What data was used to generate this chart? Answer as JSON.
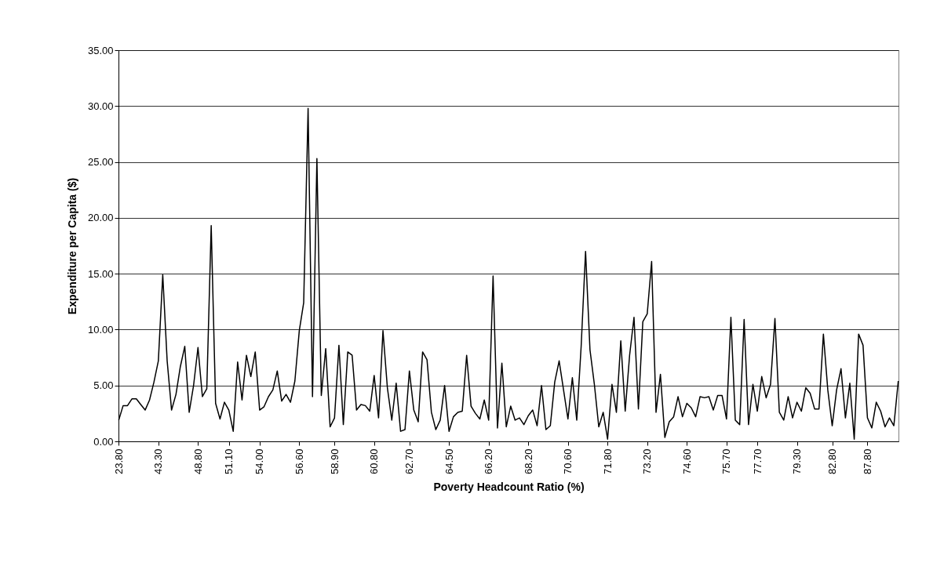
{
  "chart_data": {
    "type": "line",
    "xlabel": "Poverty Headcount Ratio (%)",
    "ylabel": "Expenditure per Capita ($)",
    "categories": [
      "23.80",
      null,
      null,
      null,
      null,
      null,
      null,
      null,
      null,
      "43.30",
      null,
      null,
      null,
      null,
      null,
      null,
      null,
      null,
      "48.80",
      null,
      null,
      null,
      null,
      null,
      null,
      "51.10",
      null,
      null,
      null,
      null,
      null,
      null,
      "54.00",
      null,
      null,
      null,
      null,
      null,
      null,
      null,
      null,
      "56.60",
      null,
      null,
      null,
      null,
      null,
      null,
      null,
      "58.90",
      null,
      null,
      null,
      null,
      null,
      null,
      null,
      null,
      "60.80",
      null,
      null,
      null,
      null,
      null,
      null,
      null,
      "62.70",
      null,
      null,
      null,
      null,
      null,
      null,
      null,
      null,
      "64.50",
      null,
      null,
      null,
      null,
      null,
      null,
      null,
      null,
      "66.20",
      null,
      null,
      null,
      null,
      null,
      null,
      null,
      null,
      "68.20",
      null,
      null,
      null,
      null,
      null,
      null,
      null,
      null,
      "70.60",
      null,
      null,
      null,
      null,
      null,
      null,
      null,
      null,
      "71.80",
      null,
      null,
      null,
      null,
      null,
      null,
      null,
      null,
      "73.20",
      null,
      null,
      null,
      null,
      null,
      null,
      null,
      null,
      "74.60",
      null,
      null,
      null,
      null,
      null,
      null,
      null,
      null,
      "75.70",
      null,
      null,
      null,
      null,
      null,
      null,
      "77.70",
      null,
      null,
      null,
      null,
      null,
      null,
      null,
      null,
      "79.30",
      null,
      null,
      null,
      null,
      null,
      null,
      null,
      "82.80",
      null,
      null,
      null,
      null,
      null,
      null,
      null,
      "87.80",
      null,
      null,
      null,
      null,
      null,
      null,
      null
    ],
    "series": [
      {
        "color": "#000000",
        "values": [
          1.9,
          3.2,
          3.2,
          3.8,
          3.8,
          3.3,
          2.8,
          3.7,
          5.3,
          7.2,
          14.9,
          7.2,
          2.8,
          4.2,
          6.7,
          8.5,
          2.6,
          5.0,
          8.4,
          4.0,
          4.7,
          19.3,
          3.4,
          2.0,
          3.5,
          2.8,
          0.9,
          7.1,
          3.7,
          7.7,
          5.8,
          8.0,
          2.8,
          3.1,
          4.0,
          4.6,
          6.3,
          3.6,
          4.2,
          3.5,
          5.4,
          9.9,
          12.4,
          29.8,
          4.0,
          25.3,
          4.1,
          8.3,
          1.3,
          2.1,
          8.6,
          1.5,
          8.0,
          7.7,
          2.8,
          3.3,
          3.2,
          2.7,
          5.9,
          2.1,
          9.9,
          4.8,
          1.9,
          5.2,
          0.9,
          1.05,
          6.3,
          2.8,
          1.75,
          8.0,
          7.3,
          2.6,
          1.05,
          1.9,
          5.0,
          0.9,
          2.2,
          2.6,
          2.7,
          7.7,
          3.15,
          2.5,
          2.0,
          3.7,
          1.9,
          14.8,
          1.2,
          7.0,
          1.3,
          3.15,
          1.9,
          2.1,
          1.5,
          2.3,
          2.8,
          1.4,
          5.0,
          1.05,
          1.4,
          5.3,
          7.2,
          4.6,
          2.0,
          5.7,
          1.9,
          8.5,
          17.0,
          8.2,
          5.1,
          1.3,
          2.6,
          0.2,
          5.1,
          2.6,
          9.0,
          2.7,
          7.7,
          11.1,
          2.9,
          10.7,
          11.4,
          16.1,
          2.6,
          6.0,
          0.35,
          1.75,
          2.2,
          4.0,
          2.2,
          3.4,
          3.0,
          2.2,
          4.0,
          3.9,
          4.0,
          2.8,
          4.1,
          4.1,
          2.0,
          11.1,
          1.9,
          1.5,
          10.9,
          1.5,
          5.1,
          2.7,
          5.8,
          3.9,
          5.1,
          11.0,
          2.6,
          1.9,
          4.0,
          2.1,
          3.5,
          2.7,
          4.8,
          4.3,
          2.9,
          2.9,
          9.6,
          4.6,
          1.4,
          4.6,
          6.5,
          2.1,
          5.2,
          0.2,
          9.6,
          8.6,
          2.1,
          1.2,
          3.5,
          2.7,
          1.3,
          2.1,
          1.4,
          5.4
        ]
      }
    ],
    "ylim": [
      0,
      35
    ],
    "yticks": [
      {
        "value": 0,
        "label": "0.00"
      },
      {
        "value": 5,
        "label": "5.00"
      },
      {
        "value": 10,
        "label": "10.00"
      },
      {
        "value": 15,
        "label": "15.00"
      },
      {
        "value": 20,
        "label": "20.00"
      },
      {
        "value": 25,
        "label": "25.00"
      },
      {
        "value": 30,
        "label": "30.00"
      },
      {
        "value": 35,
        "label": "35.00"
      }
    ],
    "grid": "y",
    "legend": false,
    "marker": "none",
    "line_style": "solid"
  }
}
